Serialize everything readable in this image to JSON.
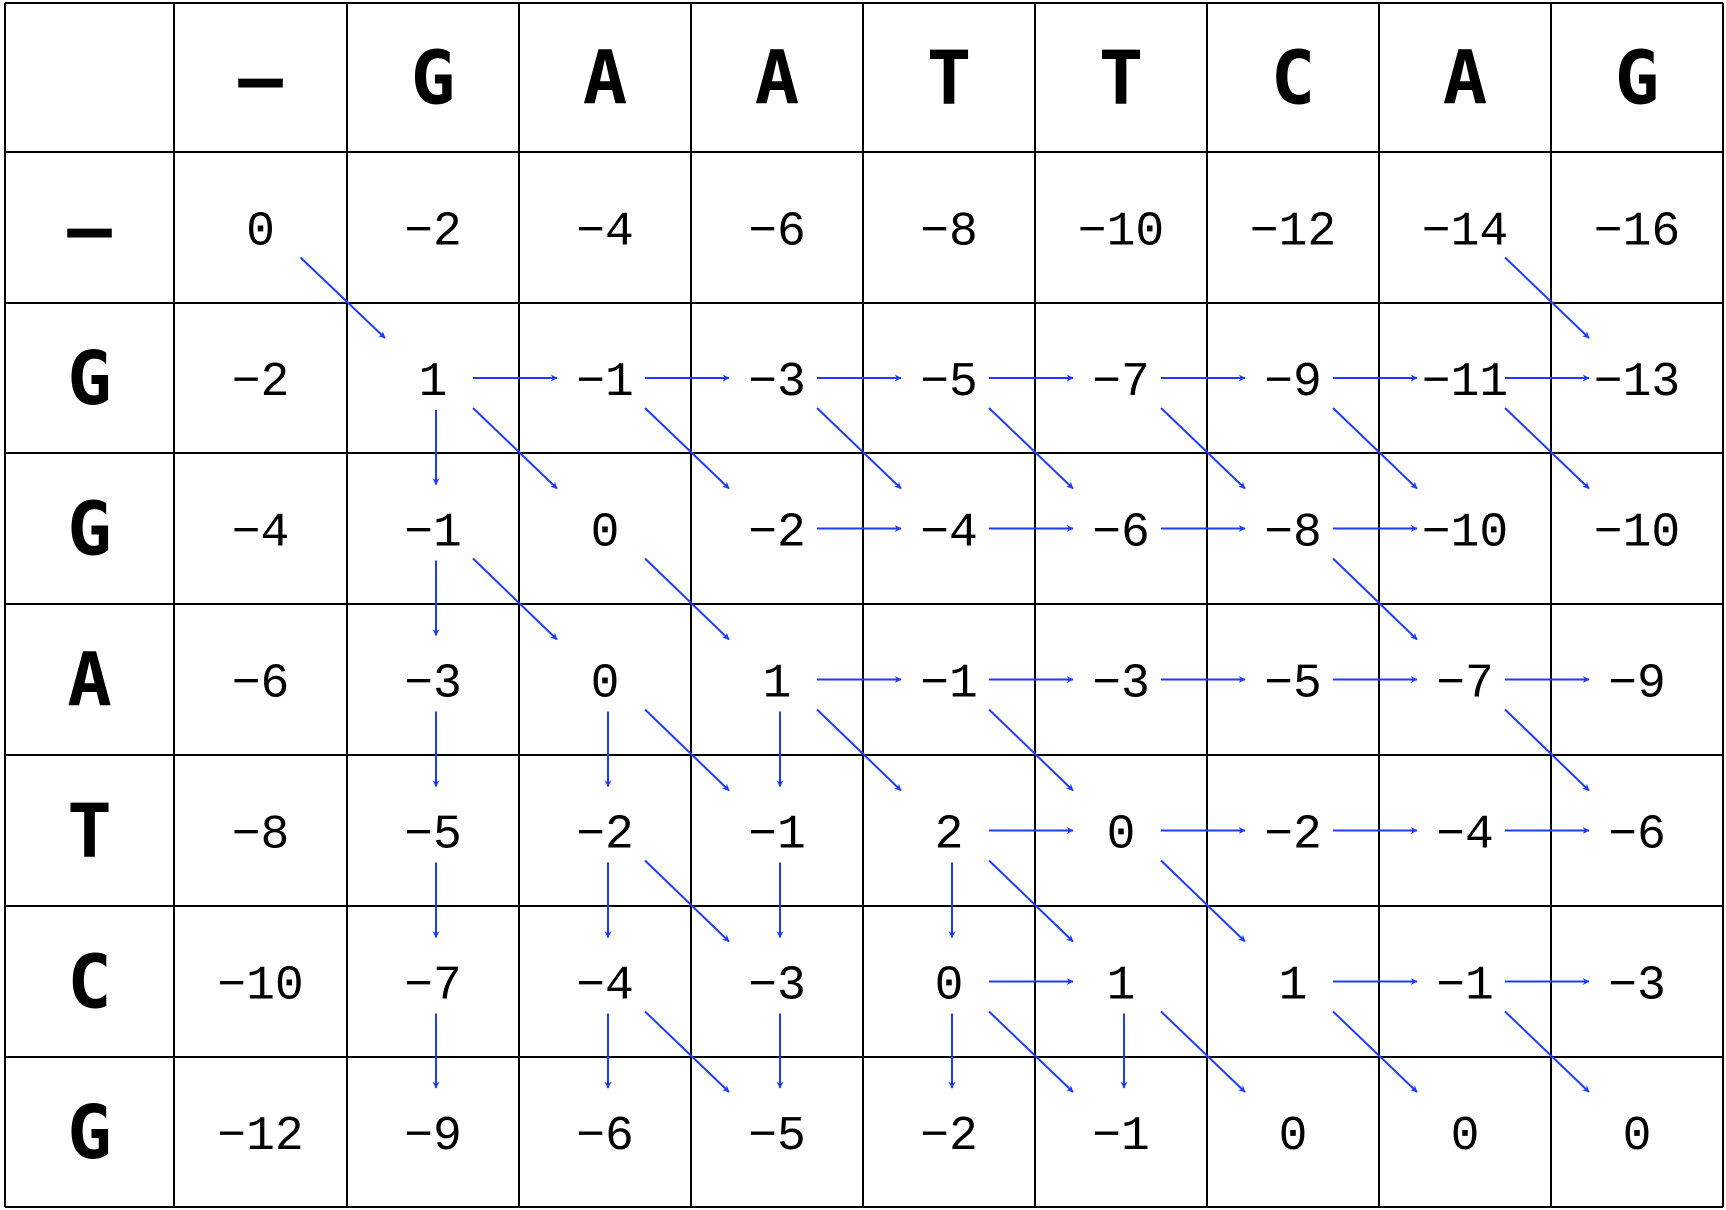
{
  "top_sequence": [
    "–",
    "G",
    "A",
    "A",
    "T",
    "T",
    "C",
    "A",
    "G"
  ],
  "left_sequence": [
    "–",
    "G",
    "G",
    "A",
    "T",
    "C",
    "G"
  ],
  "matrix": [
    [
      "0",
      "−2",
      "−4",
      "−6",
      "−8",
      "−10",
      "−12",
      "−14",
      "−16"
    ],
    [
      "−2",
      "1",
      "−1",
      "−3",
      "−5",
      "−7",
      "−9",
      "−11",
      "−13"
    ],
    [
      "−4",
      "−1",
      "0",
      "−2",
      "−4",
      "−6",
      "−8",
      "−10",
      "−10"
    ],
    [
      "−6",
      "−3",
      "0",
      "1",
      "−1",
      "−3",
      "−5",
      "−7",
      "−9"
    ],
    [
      "−8",
      "−5",
      "−2",
      "−1",
      "2",
      "0",
      "−2",
      "−4",
      "−6"
    ],
    [
      "−10",
      "−7",
      "−4",
      "−3",
      "0",
      "1",
      "1",
      "−1",
      "−3"
    ],
    [
      "−12",
      "−9",
      "−6",
      "−5",
      "−2",
      "−1",
      "0",
      "0",
      "0"
    ]
  ],
  "arrow_color": "#1e3cff",
  "arrows": [
    {
      "dir": "diag",
      "from": [
        0,
        0
      ]
    },
    {
      "dir": "diag",
      "from": [
        0,
        7
      ]
    },
    {
      "dir": "right",
      "from": [
        1,
        1
      ]
    },
    {
      "dir": "right",
      "from": [
        1,
        2
      ]
    },
    {
      "dir": "right",
      "from": [
        1,
        3
      ]
    },
    {
      "dir": "right",
      "from": [
        1,
        4
      ]
    },
    {
      "dir": "right",
      "from": [
        1,
        5
      ]
    },
    {
      "dir": "right",
      "from": [
        1,
        6
      ]
    },
    {
      "dir": "right",
      "from": [
        1,
        7
      ]
    },
    {
      "dir": "down",
      "from": [
        1,
        1
      ]
    },
    {
      "dir": "diag",
      "from": [
        1,
        1
      ]
    },
    {
      "dir": "diag",
      "from": [
        1,
        2
      ]
    },
    {
      "dir": "diag",
      "from": [
        1,
        3
      ]
    },
    {
      "dir": "diag",
      "from": [
        1,
        4
      ]
    },
    {
      "dir": "diag",
      "from": [
        1,
        5
      ]
    },
    {
      "dir": "diag",
      "from": [
        1,
        6
      ]
    },
    {
      "dir": "diag",
      "from": [
        1,
        7
      ]
    },
    {
      "dir": "right",
      "from": [
        2,
        3
      ]
    },
    {
      "dir": "right",
      "from": [
        2,
        4
      ]
    },
    {
      "dir": "right",
      "from": [
        2,
        5
      ]
    },
    {
      "dir": "right",
      "from": [
        2,
        6
      ]
    },
    {
      "dir": "down",
      "from": [
        2,
        1
      ]
    },
    {
      "dir": "diag",
      "from": [
        2,
        1
      ]
    },
    {
      "dir": "diag",
      "from": [
        2,
        2
      ],
      "bold": true
    },
    {
      "dir": "diag",
      "from": [
        2,
        6
      ]
    },
    {
      "dir": "right",
      "from": [
        3,
        3
      ]
    },
    {
      "dir": "right",
      "from": [
        3,
        4
      ]
    },
    {
      "dir": "right",
      "from": [
        3,
        5
      ]
    },
    {
      "dir": "right",
      "from": [
        3,
        6
      ]
    },
    {
      "dir": "right",
      "from": [
        3,
        7
      ]
    },
    {
      "dir": "down",
      "from": [
        3,
        1
      ]
    },
    {
      "dir": "down",
      "from": [
        3,
        2
      ]
    },
    {
      "dir": "down",
      "from": [
        3,
        3
      ]
    },
    {
      "dir": "diag",
      "from": [
        3,
        2
      ]
    },
    {
      "dir": "diag",
      "from": [
        3,
        3
      ]
    },
    {
      "dir": "diag",
      "from": [
        3,
        4
      ]
    },
    {
      "dir": "diag",
      "from": [
        3,
        7
      ]
    },
    {
      "dir": "right",
      "from": [
        4,
        4
      ]
    },
    {
      "dir": "right",
      "from": [
        4,
        5
      ]
    },
    {
      "dir": "right",
      "from": [
        4,
        6
      ]
    },
    {
      "dir": "right",
      "from": [
        4,
        7
      ]
    },
    {
      "dir": "down",
      "from": [
        4,
        1
      ]
    },
    {
      "dir": "down",
      "from": [
        4,
        2
      ]
    },
    {
      "dir": "down",
      "from": [
        4,
        3
      ]
    },
    {
      "dir": "down",
      "from": [
        4,
        4
      ]
    },
    {
      "dir": "diag",
      "from": [
        4,
        2
      ]
    },
    {
      "dir": "diag",
      "from": [
        4,
        4
      ]
    },
    {
      "dir": "diag",
      "from": [
        4,
        5
      ]
    },
    {
      "dir": "right",
      "from": [
        5,
        4
      ]
    },
    {
      "dir": "right",
      "from": [
        5,
        6
      ]
    },
    {
      "dir": "right",
      "from": [
        5,
        7
      ]
    },
    {
      "dir": "down",
      "from": [
        5,
        1
      ]
    },
    {
      "dir": "down",
      "from": [
        5,
        2
      ]
    },
    {
      "dir": "down",
      "from": [
        5,
        3
      ]
    },
    {
      "dir": "down",
      "from": [
        5,
        4
      ]
    },
    {
      "dir": "down",
      "from": [
        5,
        5
      ]
    },
    {
      "dir": "diag",
      "from": [
        5,
        2
      ]
    },
    {
      "dir": "diag",
      "from": [
        5,
        4
      ]
    },
    {
      "dir": "diag",
      "from": [
        5,
        5
      ]
    },
    {
      "dir": "diag",
      "from": [
        5,
        6
      ]
    },
    {
      "dir": "diag",
      "from": [
        5,
        7
      ]
    }
  ]
}
